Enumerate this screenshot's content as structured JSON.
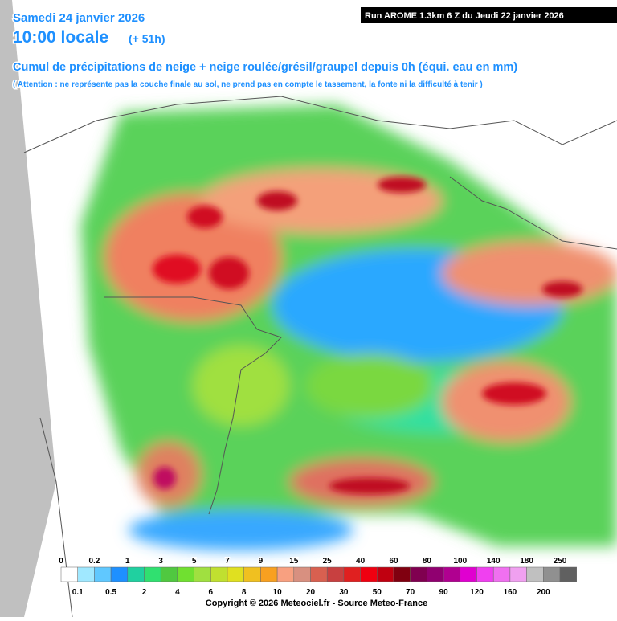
{
  "header": {
    "date": "Samedi 24 janvier 2026",
    "time": "10:00 locale",
    "lead": "(+ 51h)",
    "run": "Run AROME 1.3km 6 Z du Jeudi 22 janvier 2026",
    "title": "Cumul de précipitations de neige + neige roulée/grésil/graupel depuis 0h (équi. eau en mm)",
    "note": "( Attention : ne représente pas la couche finale au sol, ne prend pas en compte le tassement, la fonte ni la difficulté à tenir )"
  },
  "legend": {
    "labels": [
      "0",
      "0.1",
      "0.2",
      "0.5",
      "1",
      "2",
      "3",
      "4",
      "5",
      "6",
      "7",
      "8",
      "9",
      "10",
      "15",
      "20",
      "25",
      "30",
      "40",
      "50",
      "60",
      "70",
      "80",
      "90",
      "100",
      "120",
      "140",
      "160",
      "180",
      "200",
      "250"
    ]
  },
  "footer": {
    "copyright": "Copyright © 2026 Meteociel.fr - Source Meteo-France"
  }
}
